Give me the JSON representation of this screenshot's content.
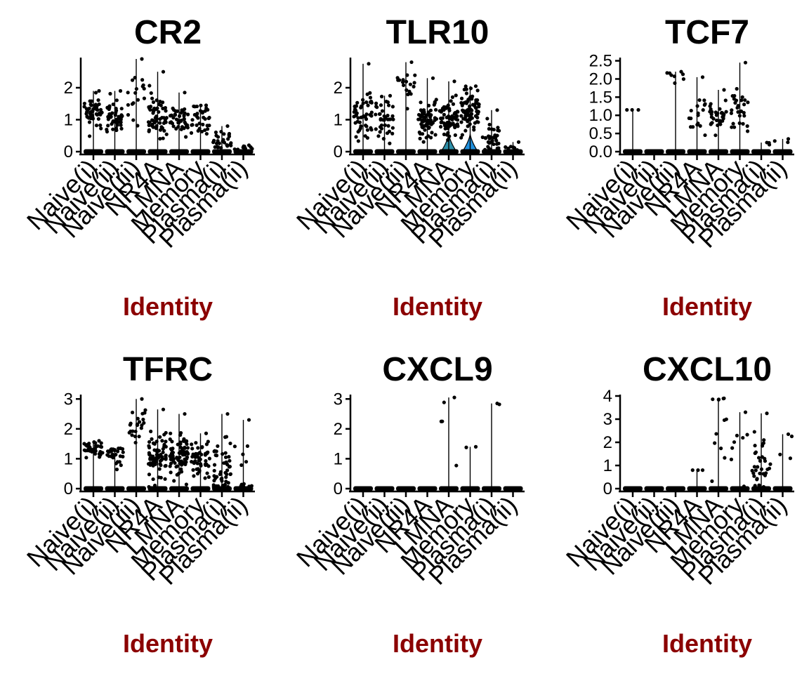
{
  "chart_data": [
    {
      "type": "violin",
      "title": "CR2",
      "xlabel": "Identity",
      "categories": [
        "Naive(i)",
        "Naive(ii)",
        "Naive(iii)",
        "NR4A",
        "LMNA",
        "Memory",
        "Plasma(i)",
        "Plasma(ii)"
      ],
      "ylim": [
        0,
        2.9
      ],
      "yticks": [
        0,
        1,
        2
      ],
      "max": [
        1.9,
        1.9,
        2.9,
        2.5,
        1.85,
        1.45,
        0.8,
        0.2
      ],
      "expr_frac": [
        0.45,
        0.4,
        0.15,
        0.55,
        0.4,
        0.3,
        0.25,
        0.08
      ],
      "center": [
        1.25,
        1.1,
        1.9,
        1.05,
        1.0,
        1.05,
        0.3,
        0.1
      ],
      "spread": [
        0.25,
        0.3,
        0.5,
        0.35,
        0.25,
        0.3,
        0.2,
        0.05
      ],
      "violin_fill": [
        null,
        null,
        null,
        null,
        null,
        null,
        null,
        null
      ]
    },
    {
      "type": "violin",
      "title": "TLR10",
      "xlabel": "Identity",
      "categories": [
        "Naive(i)",
        "Naive(ii)",
        "Naive(iii)",
        "NR4A",
        "LMNA",
        "Memory",
        "Plasma(i)",
        "Plasma(ii)"
      ],
      "ylim": [
        0,
        2.9
      ],
      "yticks": [
        0,
        1,
        2
      ],
      "max": [
        2.75,
        1.75,
        2.8,
        2.3,
        2.2,
        2.05,
        1.3,
        0.3
      ],
      "expr_frac": [
        0.45,
        0.35,
        0.15,
        0.6,
        0.6,
        0.7,
        0.3,
        0.05
      ],
      "center": [
        1.2,
        1.1,
        2.1,
        1.0,
        1.0,
        1.25,
        0.4,
        0.1
      ],
      "spread": [
        0.35,
        0.3,
        0.3,
        0.3,
        0.3,
        0.35,
        0.3,
        0.05
      ],
      "violin_fill": [
        null,
        null,
        null,
        null,
        "#2e8fa8",
        "#1f8fdc",
        null,
        null
      ]
    },
    {
      "type": "violin",
      "title": "TCF7",
      "xlabel": "Identity",
      "categories": [
        "Naive(i)",
        "Naive(ii)",
        "Naive(iii)",
        "NR4A",
        "LMNA",
        "Memory",
        "Plasma(i)",
        "Plasma(ii)"
      ],
      "ylim": [
        0,
        2.55
      ],
      "yticks": [
        0.0,
        0.5,
        1.0,
        1.5,
        2.0,
        2.5
      ],
      "max": [
        1.15,
        0.0,
        2.2,
        2.05,
        1.7,
        2.45,
        0.25,
        0.35
      ],
      "expr_frac": [
        0.02,
        0.0,
        0.06,
        0.15,
        0.3,
        0.25,
        0.02,
        0.02
      ],
      "center": [
        1.15,
        0.0,
        2.05,
        1.0,
        1.0,
        1.1,
        0.2,
        0.3
      ],
      "spread": [
        0.0,
        0.0,
        0.1,
        0.3,
        0.2,
        0.3,
        0.05,
        0.05
      ],
      "violin_fill": [
        null,
        null,
        null,
        null,
        null,
        null,
        null,
        null
      ]
    },
    {
      "type": "violin",
      "title": "TFRC",
      "xlabel": "Identity",
      "categories": [
        "Naive(i)",
        "Naive(ii)",
        "Naive(iii)",
        "NR4A",
        "LMNA",
        "Memory",
        "Plasma(i)",
        "Plasma(ii)"
      ],
      "ylim": [
        0,
        3.1
      ],
      "yticks": [
        0,
        1,
        2,
        3
      ],
      "max": [
        1.6,
        1.35,
        3.0,
        2.65,
        2.5,
        1.85,
        2.5,
        2.3
      ],
      "expr_frac": [
        0.35,
        0.25,
        0.2,
        0.65,
        0.65,
        0.5,
        0.45,
        0.1
      ],
      "center": [
        1.35,
        1.1,
        2.15,
        1.05,
        1.1,
        1.05,
        0.5,
        0.6
      ],
      "spread": [
        0.15,
        0.2,
        0.35,
        0.35,
        0.35,
        0.3,
        0.55,
        0.8
      ],
      "violin_fill": [
        null,
        null,
        null,
        null,
        null,
        null,
        null,
        null
      ]
    },
    {
      "type": "violin",
      "title": "CXCL9",
      "xlabel": "Identity",
      "categories": [
        "Naive(i)",
        "Naive(ii)",
        "Naive(iii)",
        "NR4A",
        "LMNA",
        "Memory",
        "Plasma(i)",
        "Plasma(ii)"
      ],
      "ylim": [
        0,
        3.1
      ],
      "yticks": [
        0,
        1,
        2,
        3
      ],
      "max": [
        0.0,
        0.0,
        0.0,
        0.0,
        3.05,
        1.4,
        2.85,
        0.0
      ],
      "expr_frac": [
        0.0,
        0.0,
        0.0,
        0.0,
        0.04,
        0.01,
        0.01,
        0.0
      ],
      "center": [
        0.0,
        0.0,
        0.0,
        0.0,
        2.0,
        1.38,
        2.82,
        0.0
      ],
      "spread": [
        0.0,
        0.0,
        0.0,
        0.0,
        0.9,
        0.0,
        0.0,
        0.0
      ],
      "violin_fill": [
        null,
        null,
        null,
        null,
        null,
        null,
        null,
        null
      ]
    },
    {
      "type": "violin",
      "title": "CXCL10",
      "xlabel": "Identity",
      "categories": [
        "Naive(i)",
        "Naive(ii)",
        "Naive(iii)",
        "NR4A",
        "LMNA",
        "Memory",
        "Plasma(i)",
        "Plasma(ii)"
      ],
      "ylim": [
        0,
        4.0
      ],
      "yticks": [
        0,
        1,
        2,
        3,
        4
      ],
      "max": [
        0.0,
        0.0,
        0.0,
        0.8,
        3.9,
        3.3,
        3.25,
        2.35
      ],
      "expr_frac": [
        0.0,
        0.0,
        0.0,
        0.02,
        0.1,
        0.06,
        0.3,
        0.03
      ],
      "center": [
        0.0,
        0.0,
        0.0,
        0.8,
        2.5,
        2.0,
        1.1,
        1.0
      ],
      "spread": [
        0.0,
        0.0,
        0.0,
        0.0,
        1.2,
        1.1,
        0.8,
        1.0
      ],
      "violin_fill": [
        null,
        null,
        null,
        null,
        null,
        null,
        null,
        null
      ]
    }
  ],
  "colors": {
    "points": "#000000",
    "axis": "#000000",
    "xlabel": "#8b0000"
  }
}
